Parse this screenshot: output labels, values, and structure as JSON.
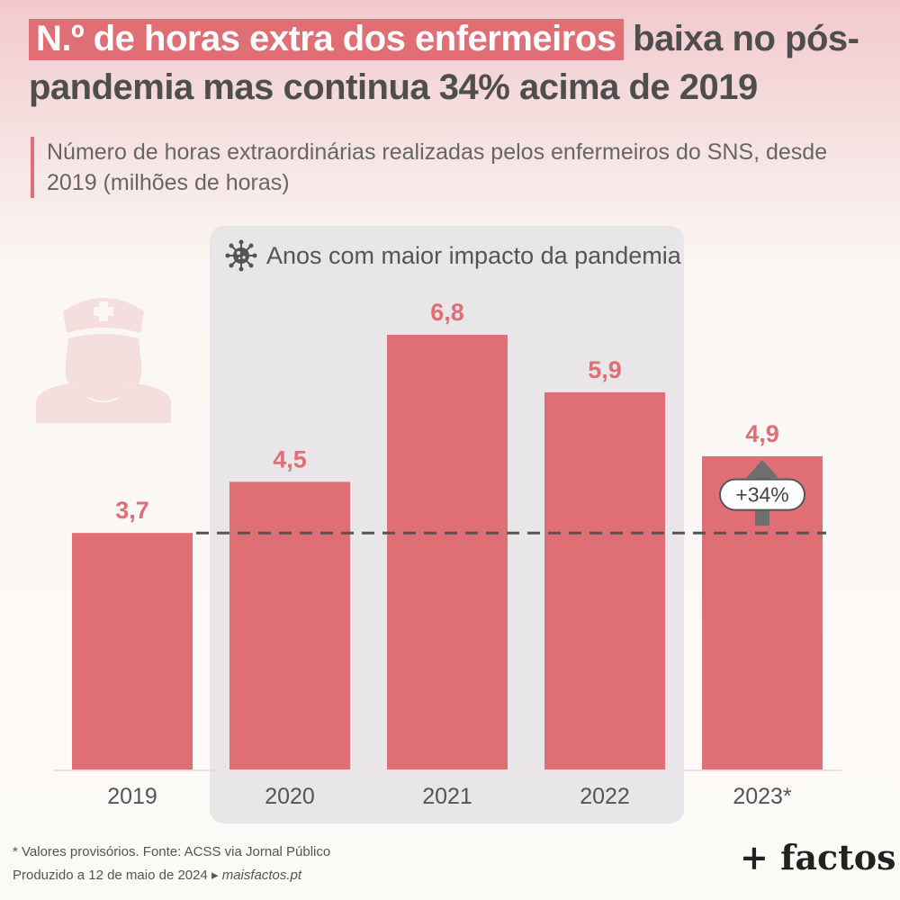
{
  "title": {
    "highlight": "N.º de horas extra dos enfermeiros",
    "rest": " baixa no pós-pandemia mas continua 34% acima de 2019"
  },
  "subtitle": "Número de horas extraordinárias realizadas pelos enfermeiros do SNS, desde 2019 (milhões de horas)",
  "pandemic_label": "Anos com maior impacto da pandemia",
  "icons": {
    "virus": "virus-icon",
    "nurse": "nurse-icon"
  },
  "colors": {
    "bar": "#df6e75",
    "label": "#df6e75",
    "dash": "#555555",
    "pandemic_bg": "#e8e6e8"
  },
  "chart_data": {
    "type": "bar",
    "categories": [
      "2019",
      "2020",
      "2021",
      "2022",
      "2023*"
    ],
    "values": [
      3.7,
      4.5,
      6.8,
      5.9,
      4.9
    ],
    "value_labels": [
      "3,7",
      "4,5",
      "6,8",
      "5,9",
      "4,9"
    ],
    "reference_line": 3.7,
    "annotation": "+34%",
    "highlighted_categories": [
      "2020",
      "2021",
      "2022"
    ],
    "ylim": [
      0,
      6.8
    ]
  },
  "footer": {
    "line1": "* Valores provisórios. Fonte: ACSS via Jornal Público",
    "line2": "Produzido a 12 de maio de 2024 ▸ ",
    "site": "maisfactos.pt"
  },
  "brand": "+ factos"
}
